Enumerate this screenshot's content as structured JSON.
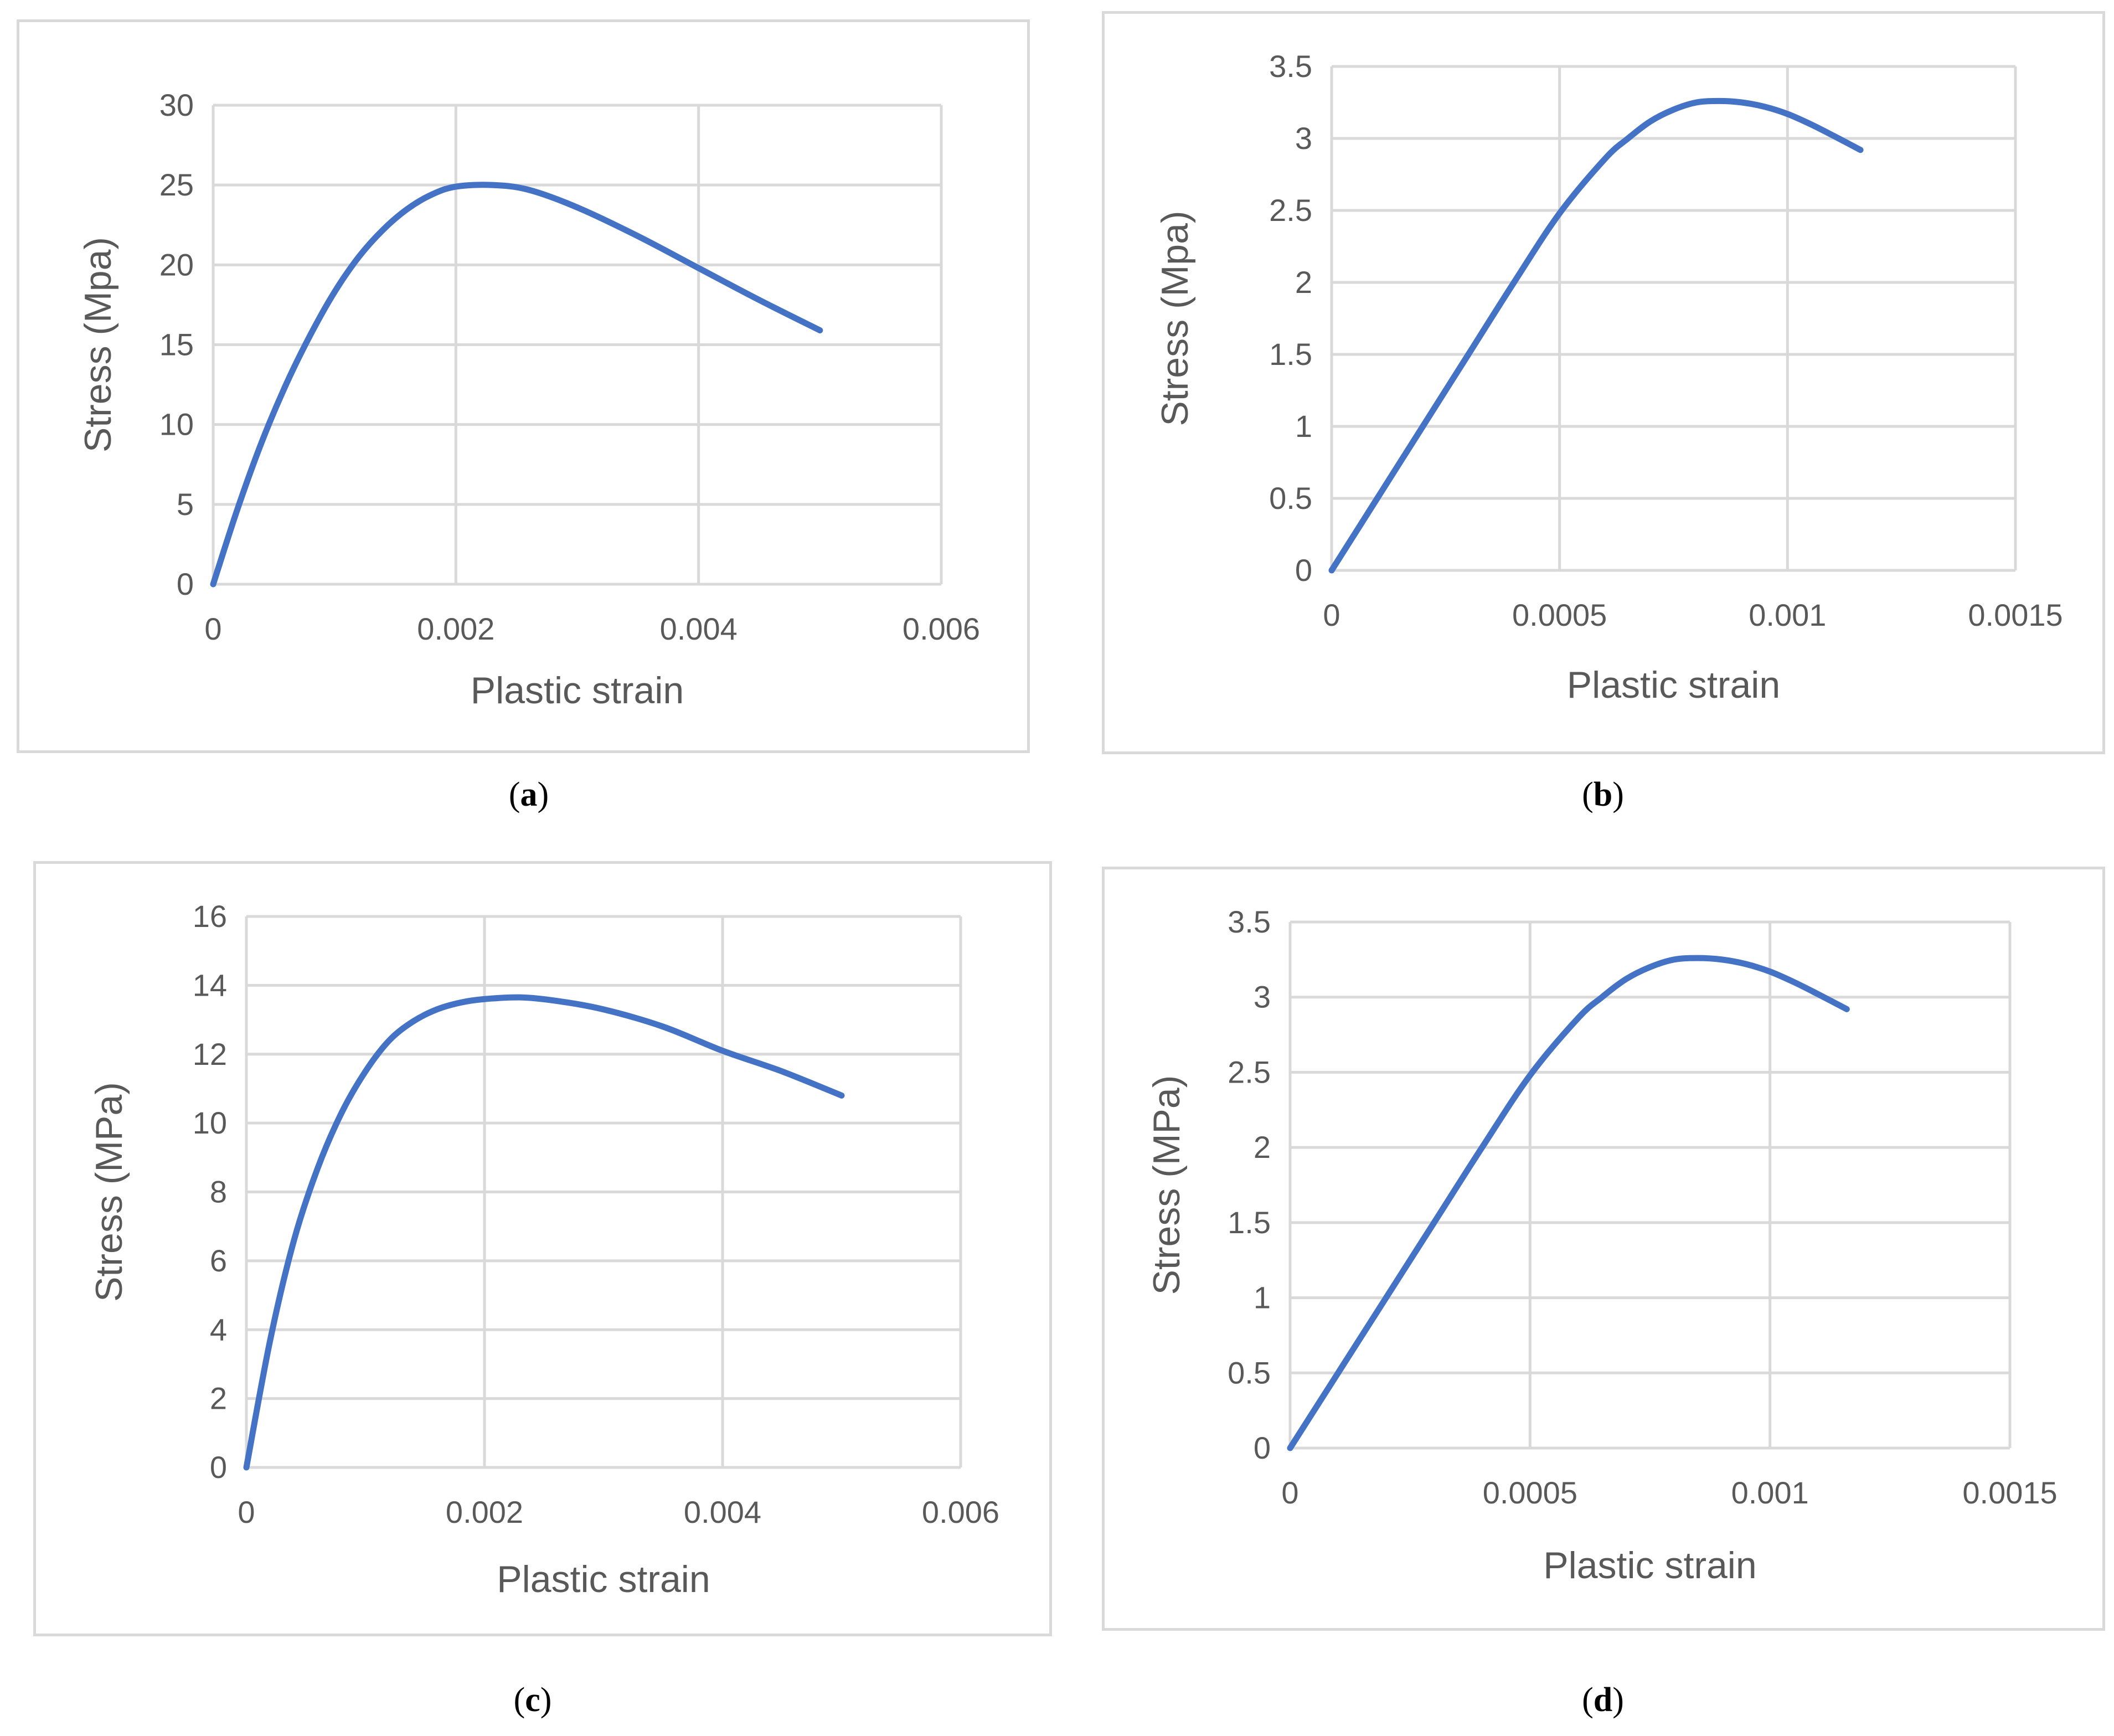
{
  "chart_data": [
    {
      "id": "a",
      "type": "line",
      "xlabel": "Plastic strain",
      "ylabel": "Stress (Mpa)",
      "xlim": [
        0,
        0.006
      ],
      "ylim": [
        0,
        30
      ],
      "xticks": [
        0,
        0.002,
        0.004,
        0.006
      ],
      "xtick_labels": [
        "0",
        "0.002",
        "0.004",
        "0.006"
      ],
      "yticks": [
        0,
        5,
        10,
        15,
        20,
        25,
        30
      ],
      "ytick_labels": [
        "0",
        "5",
        "10",
        "15",
        "20",
        "25",
        "30"
      ],
      "grid": true,
      "caption": "a",
      "series": [
        {
          "color": "#4472c4",
          "x": [
            0,
            0.0002,
            0.0004,
            0.0006,
            0.0008,
            0.001,
            0.0012,
            0.0014,
            0.0016,
            0.0018,
            0.002,
            0.0023,
            0.0026,
            0.003,
            0.0035,
            0.004,
            0.0045,
            0.005
          ],
          "y": [
            0,
            4.7,
            8.9,
            12.5,
            15.6,
            18.3,
            20.5,
            22.2,
            23.5,
            24.4,
            24.9,
            25.0,
            24.7,
            23.6,
            21.8,
            19.8,
            17.8,
            15.9
          ]
        }
      ]
    },
    {
      "id": "b",
      "type": "line",
      "xlabel": "Plastic strain",
      "ylabel": "Stress (Mpa)",
      "xlim": [
        0,
        0.0015
      ],
      "ylim": [
        0,
        3.5
      ],
      "xticks": [
        0,
        0.0005,
        0.001,
        0.0015
      ],
      "xtick_labels": [
        "0",
        "0.0005",
        "0.001",
        "0.0015"
      ],
      "yticks": [
        0,
        0.5,
        1,
        1.5,
        2,
        2.5,
        3,
        3.5
      ],
      "ytick_labels": [
        "0",
        "0.5",
        "1",
        "1.5",
        "2",
        "2.5",
        "3",
        "3.5"
      ],
      "grid": true,
      "caption": "b",
      "series": [
        {
          "color": "#4472c4",
          "x": [
            0,
            0.0001,
            0.0002,
            0.0003,
            0.0004,
            0.0005,
            0.0006,
            0.00065,
            0.0007,
            0.00075,
            0.0008,
            0.00085,
            0.0009,
            0.00095,
            0.001,
            0.00105,
            0.0011,
            0.00116
          ],
          "y": [
            0,
            0.5,
            1.0,
            1.5,
            2.0,
            2.48,
            2.86,
            3.0,
            3.12,
            3.2,
            3.25,
            3.26,
            3.25,
            3.22,
            3.17,
            3.1,
            3.02,
            2.92
          ]
        }
      ]
    },
    {
      "id": "c",
      "type": "line",
      "xlabel": "Plastic strain",
      "ylabel": "Stress (MPa)",
      "xlim": [
        0,
        0.006
      ],
      "ylim": [
        0,
        16
      ],
      "xticks": [
        0,
        0.002,
        0.004,
        0.006
      ],
      "xtick_labels": [
        "0",
        "0.002",
        "0.004",
        "0.006"
      ],
      "yticks": [
        0,
        2,
        4,
        6,
        8,
        10,
        12,
        14,
        16
      ],
      "ytick_labels": [
        "0",
        "2",
        "4",
        "6",
        "8",
        "10",
        "12",
        "14",
        "16"
      ],
      "grid": true,
      "caption": "c",
      "series": [
        {
          "color": "#4472c4",
          "x": [
            0,
            0.0002,
            0.0004,
            0.0006,
            0.0008,
            0.001,
            0.0012,
            0.0014,
            0.0016,
            0.0018,
            0.002,
            0.0023,
            0.0026,
            0.003,
            0.0035,
            0.004,
            0.0045,
            0.005
          ],
          "y": [
            0,
            3.7,
            6.6,
            8.7,
            10.3,
            11.5,
            12.4,
            12.95,
            13.3,
            13.5,
            13.6,
            13.65,
            13.55,
            13.3,
            12.8,
            12.1,
            11.5,
            10.8
          ]
        }
      ]
    },
    {
      "id": "d",
      "type": "line",
      "xlabel": "Plastic strain",
      "ylabel": "Stress (MPa)",
      "xlim": [
        0,
        0.0015
      ],
      "ylim": [
        0,
        3.5
      ],
      "xticks": [
        0,
        0.0005,
        0.001,
        0.0015
      ],
      "xtick_labels": [
        "0",
        "0.0005",
        "0.001",
        "0.0015"
      ],
      "yticks": [
        0,
        0.5,
        1,
        1.5,
        2,
        2.5,
        3,
        3.5
      ],
      "ytick_labels": [
        "0",
        "0.5",
        "1",
        "1.5",
        "2",
        "2.5",
        "3",
        "3.5"
      ],
      "grid": true,
      "caption": "d",
      "series": [
        {
          "color": "#4472c4",
          "x": [
            0,
            0.0001,
            0.0002,
            0.0003,
            0.0004,
            0.0005,
            0.0006,
            0.00065,
            0.0007,
            0.00075,
            0.0008,
            0.00085,
            0.0009,
            0.00095,
            0.001,
            0.00105,
            0.0011,
            0.00116
          ],
          "y": [
            0,
            0.5,
            1.0,
            1.5,
            2.0,
            2.48,
            2.86,
            3.0,
            3.12,
            3.2,
            3.25,
            3.26,
            3.25,
            3.22,
            3.17,
            3.1,
            3.02,
            2.92
          ]
        }
      ]
    }
  ]
}
